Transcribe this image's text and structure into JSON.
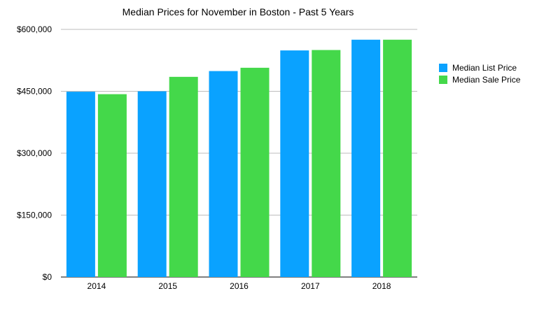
{
  "chart_data": {
    "type": "bar",
    "title": "Median Prices for November in Boston - Past 5 Years",
    "categories": [
      "2014",
      "2015",
      "2016",
      "2017",
      "2018"
    ],
    "series": [
      {
        "name": "Median List Price",
        "color": "#0aa2ff",
        "values": [
          449000,
          450000,
          499000,
          549000,
          575000
        ]
      },
      {
        "name": "Median Sale Price",
        "color": "#44d84a",
        "values": [
          443000,
          485000,
          507000,
          550000,
          575000
        ]
      }
    ],
    "ylim": [
      0,
      600000
    ],
    "yticks": [
      0,
      150000,
      300000,
      450000,
      600000
    ],
    "ytick_labels": [
      "$0",
      "$150,000",
      "$300,000",
      "$450,000",
      "$600,000"
    ],
    "xlabel": "",
    "ylabel": "",
    "grid": true,
    "legend_position": "right"
  }
}
